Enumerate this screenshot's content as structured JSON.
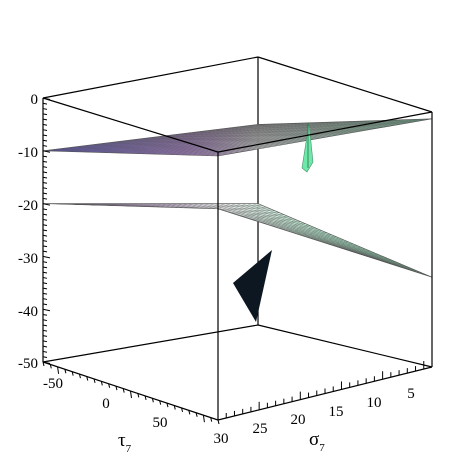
{
  "chart_data": {
    "type": "surface3d",
    "title": "",
    "z_axis": {
      "range": [
        -50,
        0
      ],
      "ticks": [
        "0",
        "-10",
        "-20",
        "-30",
        "-40",
        "-50"
      ]
    },
    "tau_axis": {
      "symbol": "τ",
      "subscript": "7",
      "range": [
        -60,
        60
      ],
      "ticks": [
        "-50",
        "0",
        "50"
      ]
    },
    "sigma_axis": {
      "symbol": "σ",
      "subscript": "7",
      "range": [
        4,
        30
      ],
      "ticks": [
        "30",
        "25",
        "20",
        "15",
        "10",
        "5"
      ]
    },
    "surfaces": [
      {
        "shape": "plane",
        "z_at_corners": {
          "tau_min_sigma_min": -12,
          "tau_min_sigma_max": -10,
          "tau_max_sigma_max": 0,
          "tau_max_sigma_min": -3
        }
      },
      {
        "shape": "plane",
        "z_at_corners": {
          "tau_min_sigma_min": -27,
          "tau_min_sigma_max": -20,
          "tau_max_sigma_max": -10,
          "tau_max_sigma_min": -33
        }
      },
      {
        "shape": "spike",
        "peak_z": -5
      },
      {
        "shape": "wedge",
        "z_range": [
          -42,
          -28
        ]
      }
    ],
    "colors": {
      "purple": "#b06ae6",
      "blue": "#3f3df0",
      "green": "#6ee8a8",
      "white": "#f2f2f2",
      "wedge": "#0d1722"
    },
    "grid": false,
    "legend": "none"
  }
}
